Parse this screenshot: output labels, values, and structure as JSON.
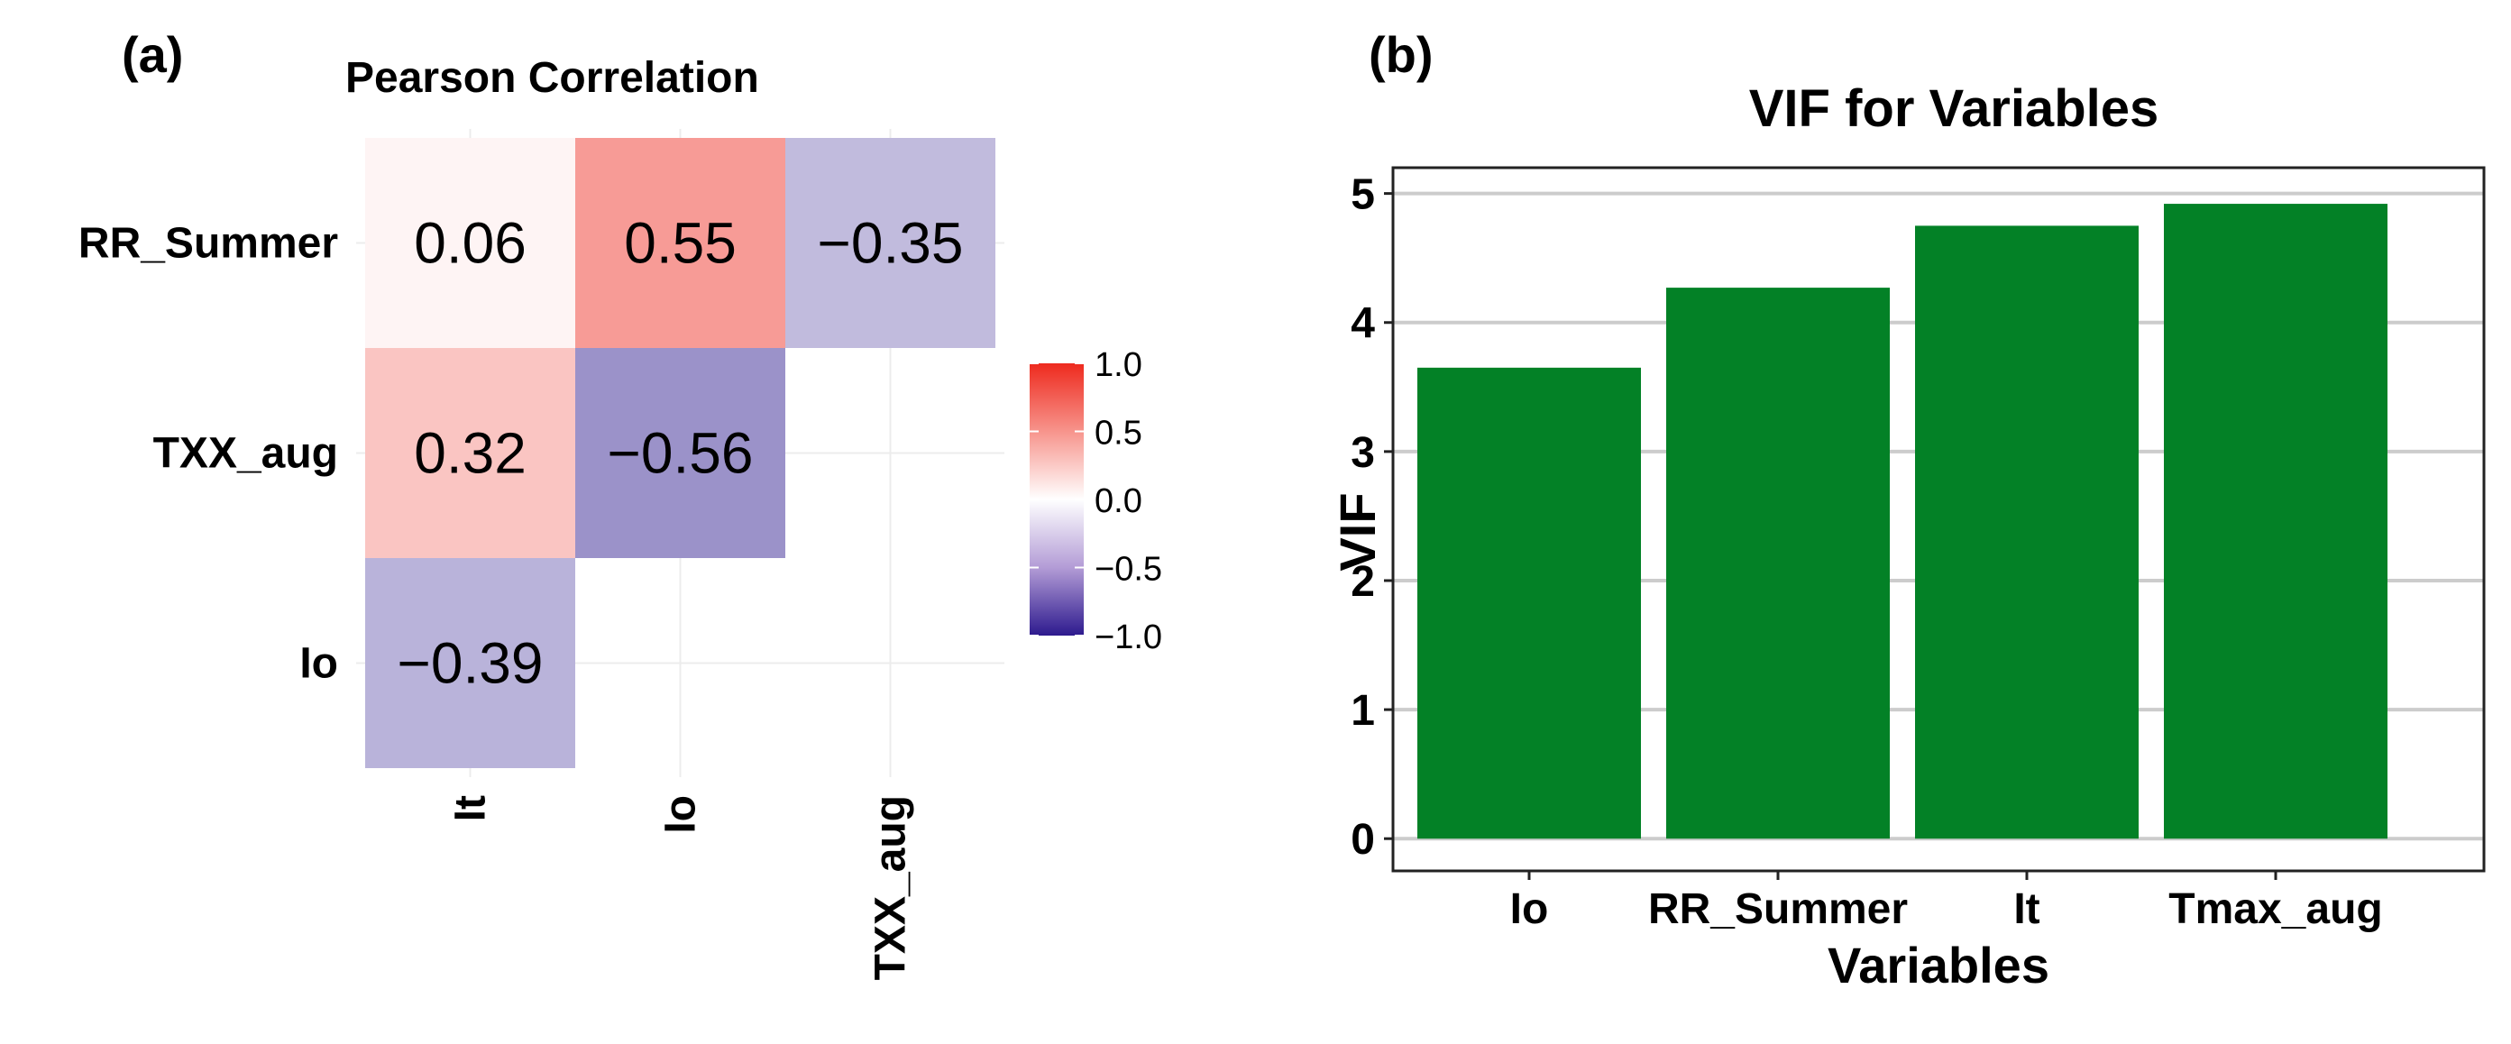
{
  "panel_a": {
    "label": "(a)",
    "legend_ticks": [
      "1.0",
      "0.5",
      "0.0",
      "−0.5",
      "−1.0"
    ]
  },
  "panel_b": {
    "label": "(b)"
  },
  "colors": {
    "positive": "#EE2A1E",
    "neutral": "#FFFFFF",
    "negative": "#2D1A8E",
    "bar": "#038126",
    "grid": "#CCCCCC"
  },
  "chart_data": [
    {
      "type": "heatmap",
      "title": "Pearson Correlation",
      "rows": [
        "RR_Summer",
        "TXX_aug",
        "Io"
      ],
      "cols": [
        "It",
        "Io",
        "TXX_aug"
      ],
      "cells": [
        {
          "row": "RR_Summer",
          "col": "It",
          "value": 0.06,
          "label": "0.06"
        },
        {
          "row": "RR_Summer",
          "col": "Io",
          "value": 0.55,
          "label": "0.55"
        },
        {
          "row": "RR_Summer",
          "col": "TXX_aug",
          "value": -0.35,
          "label": "−0.35"
        },
        {
          "row": "TXX_aug",
          "col": "It",
          "value": 0.32,
          "label": "0.32"
        },
        {
          "row": "TXX_aug",
          "col": "Io",
          "value": -0.56,
          "label": "−0.56"
        },
        {
          "row": "Io",
          "col": "It",
          "value": -0.39,
          "label": "−0.39"
        }
      ],
      "color_range": [
        -1,
        1
      ],
      "legend_ticks": [
        1.0,
        0.5,
        0.0,
        -0.5,
        -1.0
      ],
      "legend_position": "right"
    },
    {
      "type": "bar",
      "title": "VIF for Variables",
      "categories": [
        "Io",
        "RR_Summer",
        "It",
        "Tmax_aug"
      ],
      "values": [
        3.65,
        4.27,
        4.75,
        4.92
      ],
      "xlabel": "Variables",
      "ylabel": "VIF",
      "ylim": [
        -0.25,
        5.2
      ],
      "yticks": [
        0,
        1,
        2,
        3,
        4,
        5
      ],
      "grid": true
    }
  ]
}
